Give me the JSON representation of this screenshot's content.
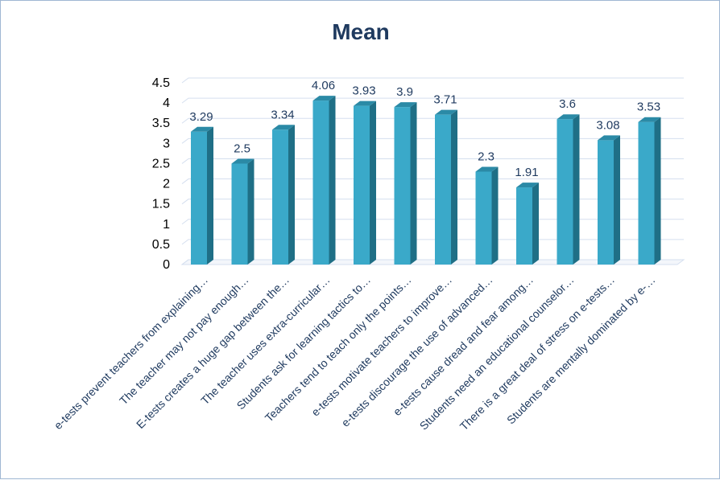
{
  "chart_data": {
    "type": "bar",
    "title": "Mean",
    "xlabel": "",
    "ylabel": "",
    "ylim": [
      0,
      4.5
    ],
    "yticks": [
      "0",
      "0.5",
      "1",
      "1.5",
      "2",
      "2.5",
      "3",
      "3.5",
      "4",
      "4.5"
    ],
    "grid": true,
    "categories": [
      "e-tests prevent teachers from explaining…",
      "The teacher may not pay enough…",
      "E-tests creates a huge gap between the…",
      "The teacher uses extra-curricular…",
      "Students ask for learning tactics to…",
      "Teachers tend to teach only the points…",
      "e-tests motivate teachers to improve…",
      "e-tests discourage the use of advanced…",
      "e-tests cause dread and fear among…",
      "Students need an educational counselor…",
      "There is a great deal of stress on e-tests…",
      "Students are mentally dominated by e-…"
    ],
    "values": [
      3.29,
      2.5,
      3.34,
      4.06,
      3.93,
      3.9,
      3.71,
      2.3,
      1.91,
      3.6,
      3.08,
      3.53
    ],
    "value_labels": [
      "3.29",
      "2.5",
      "3.34",
      "4.06",
      "3.93",
      "3.9",
      "3.71",
      "2.3",
      "1.91",
      "3.6",
      "3.08",
      "3.53"
    ],
    "colors": {
      "bar_front": "#3aa9c9",
      "bar_side": "#1f6f86",
      "bar_top": "#2b8aa6",
      "title": "#1f3a5f",
      "labels": "#1f3a5f"
    }
  }
}
